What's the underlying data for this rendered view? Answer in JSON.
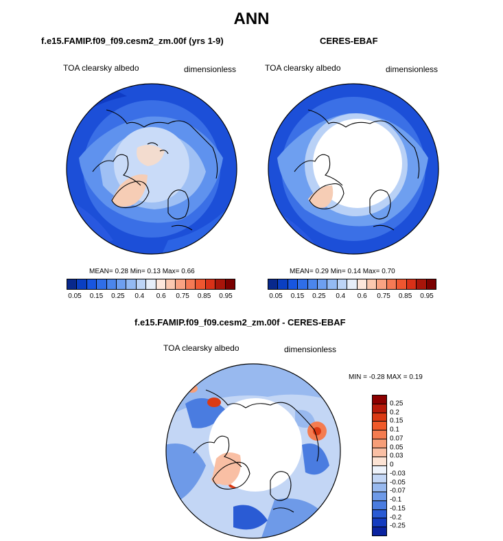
{
  "main_title": "ANN",
  "panels": [
    {
      "title": "f.e15.FAMIP.f09_f09.cesm2_zm.00f (yrs 1-9)",
      "left_label": "TOA clearsky albedo",
      "right_label": "dimensionless",
      "stats": "MEAN=   0.28  Min=   0.13  Max=   0.66"
    },
    {
      "title": "CERES-EBAF",
      "left_label": "TOA clearsky albedo",
      "right_label": "dimensionless",
      "stats": "MEAN=   0.29  Min=   0.14  Max=   0.70"
    },
    {
      "title": "f.e15.FAMIP.f09_f09.cesm2_zm.00f - CERES-EBAF",
      "left_label": "TOA clearsky albedo",
      "right_label": "dimensionless",
      "stats": "MIN =  -0.28 MAX =   0.19"
    }
  ],
  "abs_colorbar": {
    "labels": [
      "0.05",
      "0.15",
      "0.25",
      "0.4",
      "0.6",
      "0.75",
      "0.85",
      "0.95"
    ],
    "colors": [
      "#08288c",
      "#0a3fc2",
      "#1856e0",
      "#2f6ee8",
      "#4b86ec",
      "#6d9ff0",
      "#93baf3",
      "#bcd4f6",
      "#e6eef9",
      "#fde7dc",
      "#fbc8b0",
      "#f9a383",
      "#f57a55",
      "#ef5630",
      "#d93118",
      "#a8150a",
      "#7a0000"
    ]
  },
  "diff_colorbar": {
    "labels": [
      "0.25",
      "0.2",
      "0.15",
      "0.1",
      "0.07",
      "0.05",
      "0.03",
      "0",
      "-0.03",
      "-0.05",
      "-0.07",
      "-0.1",
      "-0.15",
      "-0.2",
      "-0.25"
    ],
    "colors": [
      "#8c0000",
      "#b81a0a",
      "#db3a14",
      "#f05a2a",
      "#f47c50",
      "#f79e78",
      "#f9bfa4",
      "#fce3d4",
      "#eef3fb",
      "#c3d6f5",
      "#98b9ef",
      "#6e9ae8",
      "#4a7ce0",
      "#2a5bd4",
      "#143cbf",
      "#0a23a0"
    ]
  },
  "colors": {
    "ocean_deep": "#1c4fd8",
    "ocean_mid": "#4f86ec",
    "land_light": "#cfdff8",
    "ice": "#ffffff",
    "greenland": "#f6cdb5"
  }
}
